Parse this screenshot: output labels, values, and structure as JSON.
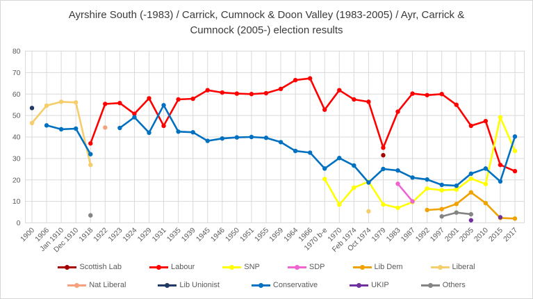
{
  "title": "Ayrshire South (-1983) / Carrick, Cumnock & Doon Valley (1983-2005) / Ayr, Carrick & Cumnock (2005-) election results",
  "axes": {
    "y_tick_labels": [
      "0",
      "10",
      "20",
      "30",
      "40",
      "50",
      "60",
      "70",
      "80"
    ],
    "grid_color": "#d9d9d9",
    "tick_text_color": "#595959"
  },
  "chart_data": {
    "type": "line",
    "title": "Ayrshire South (-1983) / Carrick, Cumnock & Doon Valley (1983-2005) / Ayr, Carrick & Cumnock (2005-) election results",
    "xlabel": "",
    "ylabel": "",
    "ylim": [
      0,
      80
    ],
    "y_ticks": [
      0,
      10,
      20,
      30,
      40,
      50,
      60,
      70,
      80
    ],
    "grid": true,
    "legend_position": "bottom",
    "categories": [
      "1900",
      "1906",
      "Jan 1910",
      "Dec 1910",
      "1918",
      "1922",
      "1923",
      "1924",
      "1929",
      "1931",
      "1935",
      "1939",
      "1945",
      "1946",
      "1950",
      "1951",
      "1955",
      "1959",
      "1964",
      "1966",
      "1970 b-e",
      "1970",
      "Feb 1974",
      "Oct 1974",
      "1979",
      "1983",
      "1987",
      "1992",
      "1997",
      "2001",
      "2005",
      "2010",
      "2015",
      "2017"
    ],
    "legend_rows": [
      [
        "Scottish Lab",
        "Labour",
        "SNP",
        "SDP",
        "Lib Dem",
        "Liberal"
      ],
      [
        "Nat Liberal",
        "Lib Unionist",
        "Conservative",
        "UKIP",
        "Others"
      ]
    ],
    "series": [
      {
        "name": "Scottish Lab",
        "color": "#a40000",
        "values": [
          null,
          null,
          null,
          null,
          null,
          null,
          null,
          null,
          null,
          null,
          null,
          null,
          null,
          null,
          null,
          null,
          null,
          null,
          null,
          null,
          null,
          null,
          null,
          null,
          31.5,
          null,
          null,
          null,
          null,
          null,
          null,
          null,
          null,
          null
        ]
      },
      {
        "name": "Labour",
        "color": "#ff0000",
        "values": [
          null,
          null,
          null,
          null,
          37,
          55.4,
          55.8,
          50.8,
          58,
          45.2,
          57.5,
          57.8,
          61.8,
          60.7,
          60.2,
          60,
          60.4,
          62.4,
          66.5,
          67.3,
          52.7,
          61.8,
          57.5,
          56.4,
          35,
          51.8,
          60.2,
          59.5,
          60,
          55,
          45.2,
          47.4,
          27,
          24.1
        ]
      },
      {
        "name": "SNP",
        "color": "#ffff00",
        "values": [
          null,
          null,
          null,
          null,
          null,
          null,
          null,
          null,
          null,
          null,
          null,
          null,
          null,
          null,
          null,
          null,
          null,
          null,
          null,
          null,
          20.4,
          8.5,
          16.4,
          19.2,
          8.6,
          7,
          9.7,
          16,
          15.2,
          15.5,
          20.6,
          18.1,
          49.2,
          33.5
        ]
      },
      {
        "name": "SDP",
        "color": "#f064d2",
        "values": [
          null,
          null,
          null,
          null,
          null,
          null,
          null,
          null,
          null,
          null,
          null,
          null,
          null,
          null,
          null,
          null,
          null,
          null,
          null,
          null,
          null,
          null,
          null,
          null,
          null,
          18.2,
          10,
          null,
          null,
          null,
          null,
          null,
          null,
          null
        ]
      },
      {
        "name": "Lib Dem",
        "color": "#f0a202",
        "values": [
          null,
          null,
          null,
          null,
          null,
          null,
          null,
          null,
          null,
          null,
          null,
          null,
          null,
          null,
          null,
          null,
          null,
          null,
          null,
          null,
          null,
          null,
          null,
          null,
          null,
          null,
          null,
          6,
          6.4,
          8.8,
          14.2,
          9.2,
          2.3,
          2
        ]
      },
      {
        "name": "Liberal",
        "color": "#f5cd6b",
        "values": [
          46.5,
          54.6,
          56.4,
          56.1,
          27,
          null,
          null,
          null,
          null,
          null,
          null,
          null,
          null,
          null,
          null,
          null,
          null,
          null,
          null,
          null,
          null,
          null,
          null,
          5.4,
          null,
          null,
          null,
          null,
          null,
          null,
          null,
          null,
          null,
          null
        ]
      },
      {
        "name": "Nat Liberal",
        "color": "#f5a17d",
        "values": [
          null,
          null,
          null,
          null,
          null,
          44.4,
          null,
          null,
          null,
          null,
          null,
          null,
          null,
          null,
          null,
          null,
          null,
          null,
          null,
          null,
          null,
          null,
          null,
          null,
          null,
          null,
          null,
          null,
          null,
          null,
          null,
          null,
          null,
          null
        ]
      },
      {
        "name": "Lib Unionist",
        "color": "#203a64",
        "values": [
          53.5,
          null,
          null,
          null,
          null,
          null,
          null,
          null,
          null,
          null,
          null,
          null,
          null,
          null,
          null,
          null,
          null,
          null,
          null,
          null,
          null,
          null,
          null,
          null,
          null,
          null,
          null,
          null,
          null,
          null,
          null,
          null,
          null,
          null
        ]
      },
      {
        "name": "Conservative",
        "color": "#0070c0",
        "values": [
          null,
          45.4,
          43.6,
          43.9,
          32,
          null,
          44.2,
          49.2,
          42,
          54.8,
          42.5,
          42.2,
          38.2,
          39.3,
          39.8,
          40,
          39.6,
          37.6,
          33.5,
          32.7,
          25.3,
          30.2,
          26.7,
          18.8,
          25.1,
          24.4,
          21.1,
          20.2,
          17.7,
          17.3,
          22.9,
          25.3,
          19.3,
          40.2
        ]
      },
      {
        "name": "UKIP",
        "color": "#7030a0",
        "values": [
          null,
          null,
          null,
          null,
          null,
          null,
          null,
          null,
          null,
          null,
          null,
          null,
          null,
          null,
          null,
          null,
          null,
          null,
          null,
          null,
          null,
          null,
          null,
          null,
          null,
          null,
          null,
          null,
          null,
          null,
          1.2,
          null,
          2.6,
          null
        ]
      },
      {
        "name": "Others",
        "color": "#848484",
        "values": [
          null,
          null,
          null,
          null,
          3.5,
          null,
          null,
          null,
          null,
          null,
          null,
          null,
          null,
          null,
          null,
          null,
          null,
          null,
          null,
          null,
          null,
          null,
          null,
          null,
          null,
          null,
          null,
          null,
          3,
          4.8,
          4,
          null,
          null,
          null
        ]
      }
    ]
  }
}
